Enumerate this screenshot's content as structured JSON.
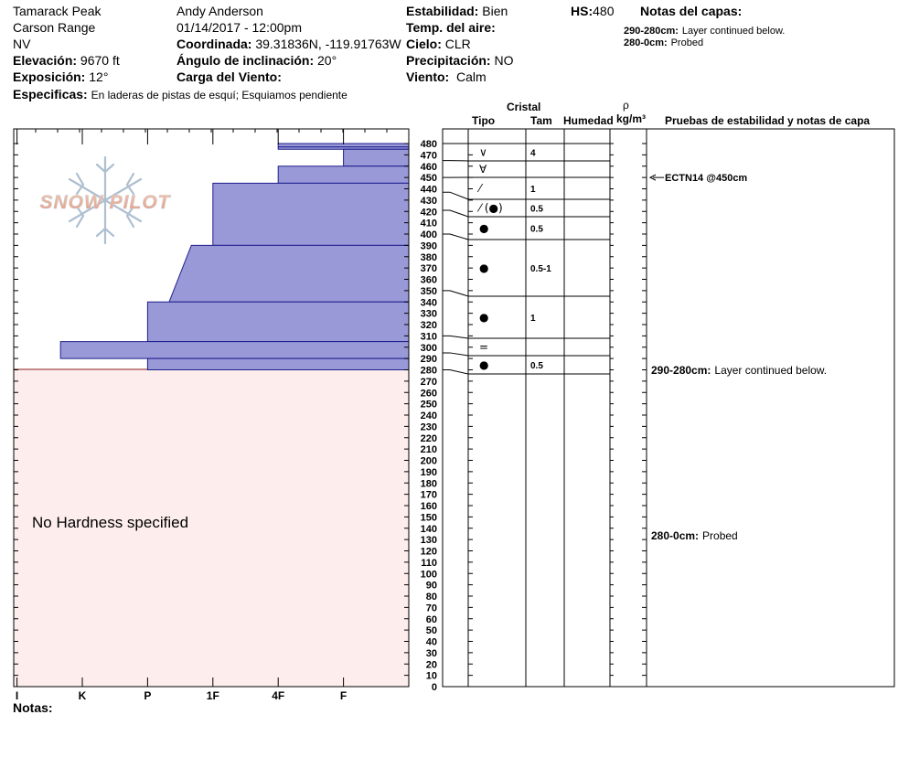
{
  "header": {
    "location": "Tamarack Peak",
    "range": "Carson Range",
    "state": "NV",
    "elevation_label": "Elevación:",
    "elevation_value": "9670 ft",
    "aspect_label": "Exposición:",
    "aspect_value": "12°",
    "specifics_label": "Especificas:",
    "specifics_value": "En laderas de pistas de esquí; Esquiamos pendiente",
    "observer": "Andy Anderson",
    "datetime": "01/14/2017 - 12:00pm",
    "coord_label": "Coordinada:",
    "coord_value": "39.31836N, -119.91763W",
    "slope_label": "Ángulo de inclinación:",
    "slope_value": "20°",
    "wind_load_label": "Carga del Viento:",
    "stability_label": "Estabilidad:",
    "stability_value": "Bien",
    "air_temp_label": "Temp. del aire:",
    "sky_label": "Cielo:",
    "sky_value": "CLR",
    "precip_label": "Precipitación:",
    "precip_value": "NO",
    "wind_label": "Viento:",
    "wind_value": "Calm",
    "hs_label": "HS:",
    "hs_value": "480",
    "layer_notes_label": "Notas del capas:",
    "layer_notes": [
      {
        "range": "290-280cm:",
        "text": "Layer continued below."
      },
      {
        "range": "280-0cm:",
        "text": "Probed"
      }
    ]
  },
  "logo_text": "SNOW PILOT",
  "columns": {
    "cristal": "Cristal",
    "tipo": "Tipo",
    "tam": "Tam",
    "humedad": "Humedad",
    "rho": "ρ",
    "density_unit": "kg/m³",
    "tests": "Pruebas de estabilidad y notas de capa"
  },
  "no_hardness_text": "No Hardness specified",
  "notas_label": "Notas:",
  "stability_test": "ECTN14 @450cm",
  "stability_test_depth": 450,
  "layer_notes_side": [
    {
      "range": "290-280cm:",
      "text": "Layer continued below.",
      "depth": 280
    },
    {
      "range": "280-0cm:",
      "text": "Probed",
      "depth": 140
    }
  ],
  "chart_data": {
    "type": "bar",
    "hardness_scale": [
      "I",
      "K",
      "P",
      "1F",
      "4F",
      "F"
    ],
    "hardness_index": {
      "F": 1,
      "4F": 2,
      "1F": 3,
      "P": 4,
      "K": 5,
      "I": 6
    },
    "depth_ylim": [
      0,
      480
    ],
    "depth_tick_step": 10,
    "layers": [
      {
        "top": 480,
        "bottom": 477,
        "hardness": "4F"
      },
      {
        "top": 477,
        "bottom": 475,
        "hardness": "4F"
      },
      {
        "top": 475,
        "bottom": 460,
        "hardness": "F"
      },
      {
        "top": 460,
        "bottom": 445,
        "hardness": "4F"
      },
      {
        "top": 445,
        "bottom": 390,
        "hardness": "1F"
      },
      {
        "top": 390,
        "bottom": 340,
        "hardness_top": "1F+",
        "hardness_bottom": "P-",
        "top_index": 3.33,
        "bottom_index": 3.67
      },
      {
        "top": 340,
        "bottom": 305,
        "hardness": "P"
      },
      {
        "top": 305,
        "bottom": 290,
        "hardness": "K+"
      },
      {
        "top": 290,
        "bottom": 280,
        "hardness": "P"
      }
    ],
    "probed_range": [
      0,
      280
    ],
    "crystal_rows": [
      {
        "top": 480,
        "bottom": 465,
        "symbol": "∨",
        "size": "4"
      },
      {
        "top": 465,
        "bottom": 450,
        "symbol": "∀",
        "size": ""
      },
      {
        "top": 450,
        "bottom": 437,
        "symbol": "⁄",
        "size": "1"
      },
      {
        "top": 437,
        "bottom": 421,
        "symbol": "⁄ (●)",
        "size": "0.5"
      },
      {
        "top": 421,
        "bottom": 400,
        "symbol": "●",
        "size": "0.5"
      },
      {
        "top": 400,
        "bottom": 350,
        "symbol": "●",
        "size": "0.5-1"
      },
      {
        "top": 350,
        "bottom": 310,
        "symbol": "●",
        "size": "1"
      },
      {
        "top": 310,
        "bottom": 295,
        "symbol": "=",
        "size": ""
      },
      {
        "top": 295,
        "bottom": 280,
        "symbol": "●",
        "size": "0.5"
      }
    ]
  }
}
